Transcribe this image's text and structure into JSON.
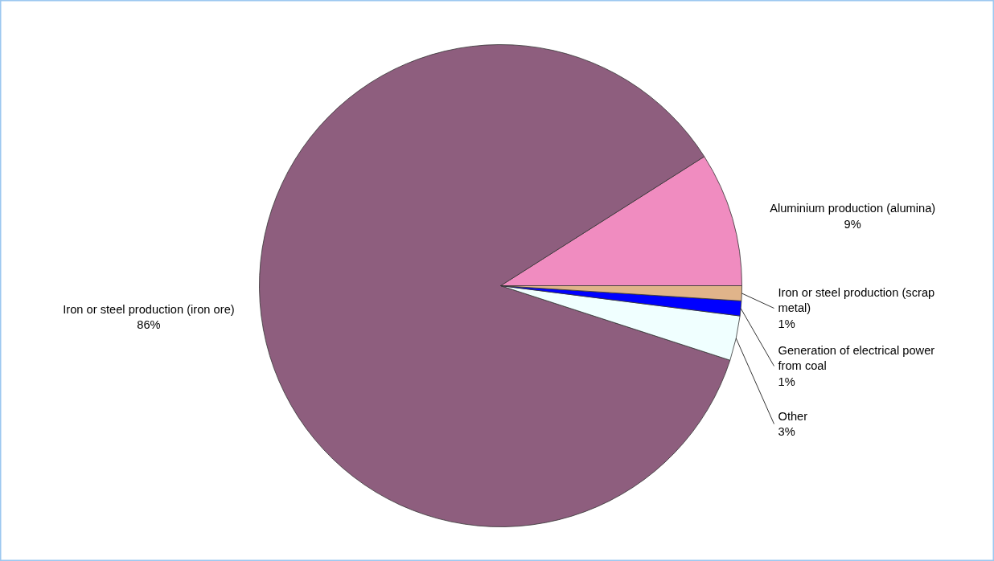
{
  "chart_data": {
    "type": "pie",
    "categories": [
      "Aluminium production (alumina)",
      "Iron or steel production (iron ore)",
      "Other",
      "Generation of electrical power from coal",
      "Iron or steel production (scrap metal)"
    ],
    "values": [
      9,
      86,
      3,
      1,
      1
    ],
    "colors": [
      "#f08cc0",
      "#8e5e7e",
      "#f0ffff",
      "#0000ff",
      "#e0b48a"
    ],
    "value_labels": [
      "9%",
      "86%",
      "3%",
      "1%",
      "1%"
    ]
  }
}
